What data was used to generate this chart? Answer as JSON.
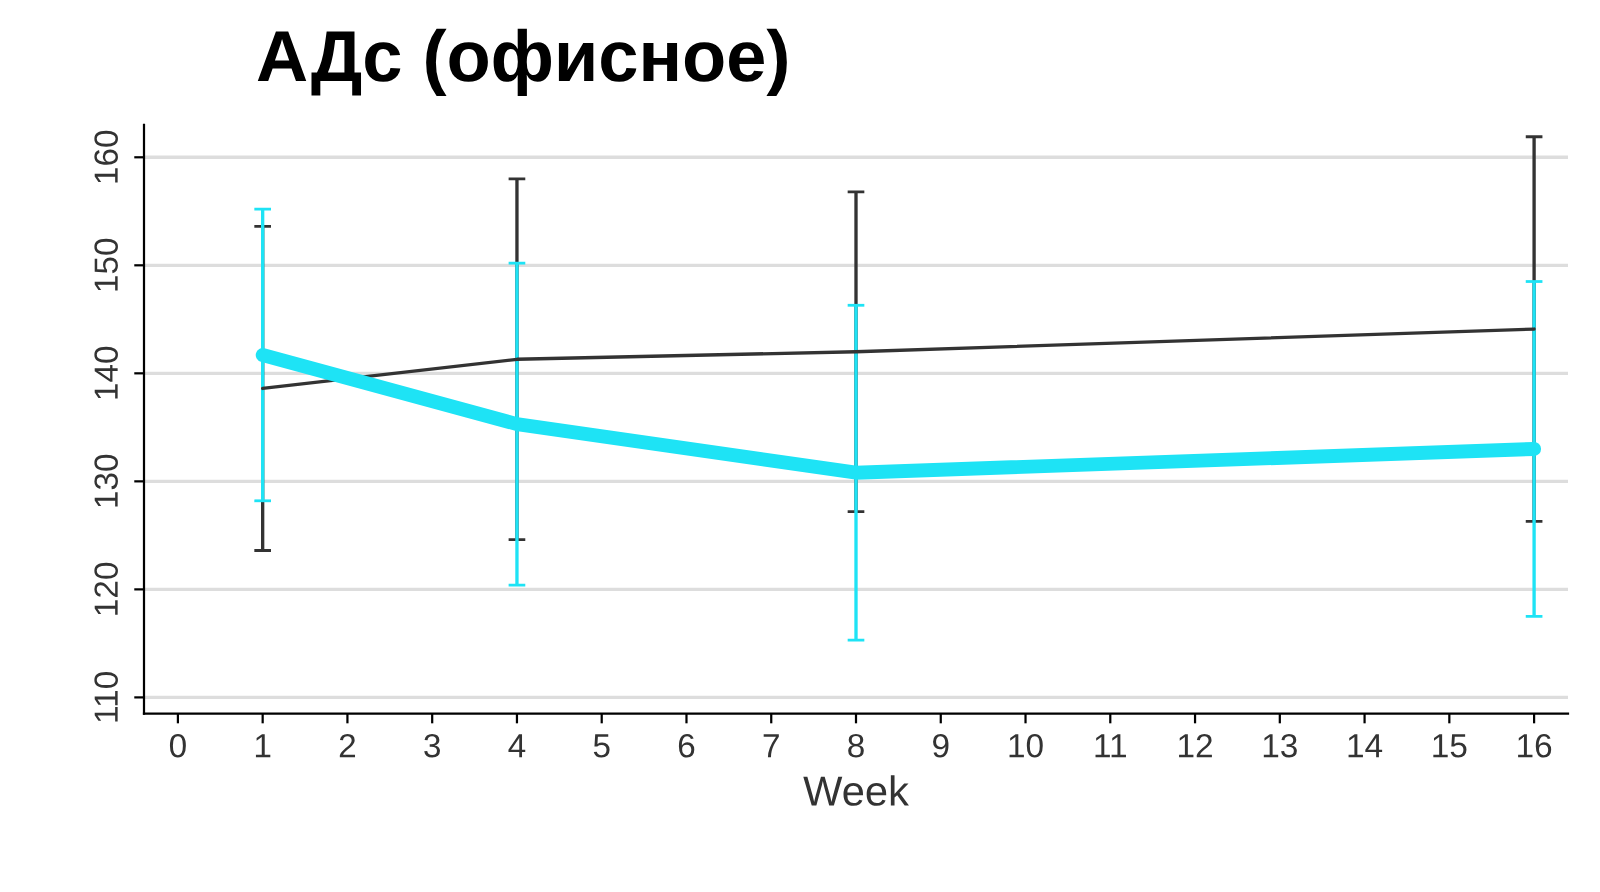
{
  "chart_data": {
    "type": "line",
    "title": "АДс (офисное)",
    "xlabel": "Week",
    "x": [
      1,
      4,
      8,
      16
    ],
    "series": [
      {
        "color": "#333333",
        "values": [
          138.6,
          141.3,
          142.0,
          144.1
        ],
        "errors": [
          15.0,
          16.7,
          14.8,
          17.8
        ]
      },
      {
        "color": "#1ee3f5",
        "values": [
          141.7,
          135.3,
          130.8,
          133.0
        ],
        "errors": [
          13.5,
          14.9,
          15.5,
          15.5
        ]
      }
    ],
    "xlim": [
      -0.4,
      16.4
    ],
    "xticks": [
      0,
      1,
      2,
      3,
      4,
      5,
      6,
      7,
      8,
      9,
      10,
      11,
      12,
      13,
      14,
      15,
      16
    ],
    "ylim": [
      108.5,
      163
    ],
    "yticks": [
      110,
      120,
      130,
      140,
      150,
      160
    ],
    "grid": "y",
    "marker": "none",
    "line_style": "solid"
  }
}
